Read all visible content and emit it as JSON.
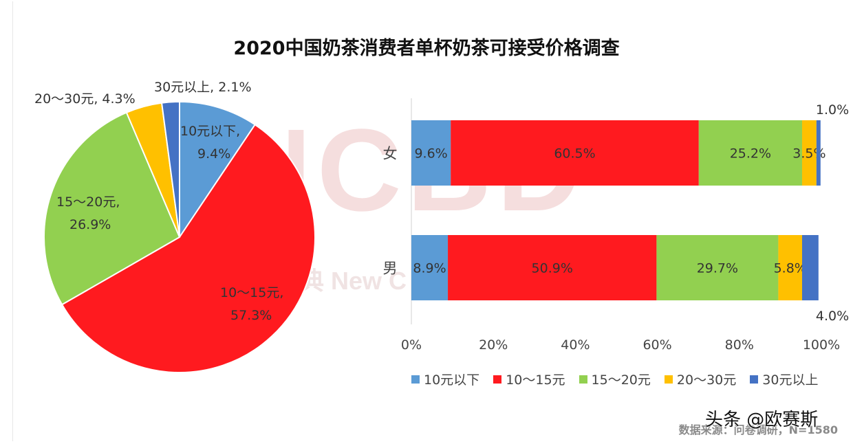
{
  "title": "2020中国奶茶消费者单杯奶茶可接受价格调查",
  "watermark": "NCBD",
  "watermark_sub": "典 New C",
  "source": "数据来源：问卷调研，N=1580",
  "credit": "头条 @欧赛斯",
  "colors": {
    "10元以下": "#5b9bd5",
    "10～15元": "#ff1a1f",
    "15～20元": "#92d050",
    "20～30元": "#ffc000",
    "30元以上": "#4472c4"
  },
  "legend": [
    "10元以下",
    "10～15元",
    "15～20元",
    "20～30元",
    "30元以上"
  ],
  "chart_data": [
    {
      "type": "pie",
      "slices": [
        {
          "label": "10元以下",
          "value": 9.4,
          "text": [
            "10元以下,",
            "9.4%"
          ]
        },
        {
          "label": "10～15元",
          "value": 57.3,
          "text": [
            "10～15元,",
            "57.3%"
          ]
        },
        {
          "label": "15～20元",
          "value": 26.9,
          "text": [
            "15～20元,",
            "26.9%"
          ]
        },
        {
          "label": "20～30元",
          "value": 4.3,
          "text": [
            "20～30元, 4.3%"
          ]
        },
        {
          "label": "30元以上",
          "value": 2.1,
          "text": [
            "30元以上, 2.1%"
          ]
        }
      ]
    },
    {
      "type": "bar",
      "orientation": "horizontal",
      "stacked": true,
      "categories": [
        "女",
        "男"
      ],
      "xlim": [
        0,
        100
      ],
      "xticks": [
        "0%",
        "20%",
        "40%",
        "60%",
        "80%",
        "100%"
      ],
      "series": [
        {
          "name": "10元以下",
          "values": [
            9.6,
            8.9
          ],
          "labels": [
            "9.6%",
            "8.9%"
          ]
        },
        {
          "name": "10～15元",
          "values": [
            60.5,
            50.9
          ],
          "labels": [
            "60.5%",
            "50.9%"
          ]
        },
        {
          "name": "15～20元",
          "values": [
            25.2,
            29.7
          ],
          "labels": [
            "25.2%",
            "29.7%"
          ]
        },
        {
          "name": "20～30元",
          "values": [
            3.5,
            5.8
          ],
          "labels": [
            "3.5%",
            "5.8%"
          ]
        },
        {
          "name": "30元以上",
          "values": [
            1.0,
            4.0
          ],
          "labels": [
            "1.0%",
            "4.0%"
          ]
        }
      ]
    }
  ]
}
